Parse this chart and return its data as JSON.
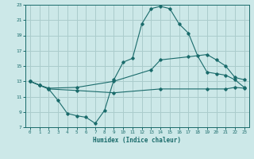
{
  "xlabel": "Humidex (Indice chaleur)",
  "bg_color": "#cce8e8",
  "grid_color": "#aacccc",
  "line_color": "#1a6b6b",
  "xlim": [
    -0.5,
    23.5
  ],
  "ylim": [
    7,
    23
  ],
  "xticks": [
    0,
    1,
    2,
    3,
    4,
    5,
    6,
    7,
    8,
    9,
    10,
    11,
    12,
    13,
    14,
    15,
    16,
    17,
    18,
    19,
    20,
    21,
    22,
    23
  ],
  "yticks": [
    7,
    9,
    11,
    13,
    15,
    17,
    19,
    21,
    23
  ],
  "line1_x": [
    0,
    1,
    2,
    3,
    4,
    5,
    6,
    7,
    8,
    9,
    10,
    11,
    12,
    13,
    14,
    15,
    16,
    17,
    18,
    19,
    20,
    21,
    22,
    23
  ],
  "line1_y": [
    13,
    12.5,
    12,
    10.5,
    8.8,
    8.5,
    8.3,
    7.5,
    9.2,
    13.2,
    15.5,
    16.0,
    20.5,
    22.5,
    22.8,
    22.5,
    20.5,
    19.3,
    16.3,
    14.2,
    14.0,
    13.8,
    13.2,
    12.2
  ],
  "line2_x": [
    0,
    1,
    2,
    5,
    9,
    13,
    14,
    17,
    19,
    20,
    21,
    22,
    23
  ],
  "line2_y": [
    13,
    12.5,
    12.1,
    12.2,
    13.0,
    14.5,
    15.8,
    16.2,
    16.5,
    15.8,
    15.0,
    13.5,
    13.2
  ],
  "line3_x": [
    0,
    1,
    2,
    5,
    9,
    14,
    19,
    21,
    22,
    23
  ],
  "line3_y": [
    13,
    12.5,
    12.0,
    11.8,
    11.5,
    12.0,
    12.0,
    12.0,
    12.2,
    12.1
  ]
}
